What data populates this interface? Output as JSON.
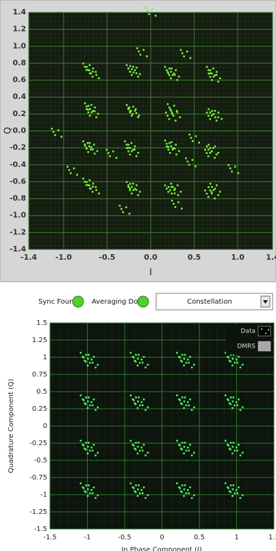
{
  "indicators": [
    {
      "label": "Sync Found"
    },
    {
      "label": "Averaging Done"
    }
  ],
  "dropdown": {
    "value": "Constellation"
  },
  "chart_data": [
    {
      "type": "scatter",
      "xlabel": "I",
      "ylabel": "Q",
      "color": "#7cf53a",
      "grid": true,
      "xlim": [
        -1.4,
        1.4
      ],
      "ylim": [
        -1.4,
        1.4
      ],
      "xticks": [
        -1.4,
        {
          "value": -1,
          "label": "-1.0"
        },
        -0.5,
        {
          "value": 0,
          "label": "0.0"
        },
        0.5,
        {
          "value": 1,
          "label": "1.0"
        },
        1.4
      ],
      "yticks": [
        1.4,
        1.2,
        {
          "value": 1,
          "label": "1.0"
        },
        0.8,
        0.6,
        0.4,
        0.2,
        {
          "value": 0,
          "label": "0.0"
        },
        -0.2,
        -0.4,
        -0.6,
        -0.8,
        {
          "value": -1,
          "label": "-1.0"
        },
        -1.2,
        -1.4
      ],
      "x": [
        -0.72,
        -0.68,
        -0.65,
        -0.22,
        -0.18,
        -0.2,
        0.22,
        0.27,
        0.25,
        0.7,
        0.74,
        0.72,
        -0.7,
        -0.66,
        -0.68,
        -0.22,
        -0.19,
        -0.2,
        0.25,
        0.28,
        0.23,
        0.72,
        0.76,
        0.7,
        -0.72,
        -0.67,
        -0.7,
        -0.24,
        -0.2,
        -0.22,
        0.22,
        0.27,
        0.24,
        0.7,
        0.68,
        0.72,
        -0.72,
        -0.68,
        -0.65,
        -0.22,
        -0.18,
        -0.2,
        0.22,
        0.26,
        0.29,
        0.68,
        0.72,
        0.74,
        -1.08,
        0.0,
        -0.1,
        0.4,
        -0.9,
        0.46,
        0.5,
        -0.3,
        0.3,
        -0.45,
        0.95
      ],
      "y": [
        0.74,
        0.7,
        0.66,
        0.72,
        0.71,
        0.68,
        0.7,
        0.68,
        0.64,
        0.7,
        0.66,
        0.62,
        0.27,
        0.24,
        0.2,
        0.25,
        0.22,
        0.2,
        0.26,
        0.2,
        0.16,
        0.2,
        0.18,
        0.16,
        -0.18,
        -0.2,
        -0.23,
        -0.18,
        -0.22,
        -0.26,
        -0.17,
        -0.2,
        -0.24,
        -0.24,
        -0.28,
        -0.22,
        -0.62,
        -0.66,
        -0.7,
        -0.66,
        -0.68,
        -0.72,
        -0.7,
        -0.72,
        -0.68,
        -0.76,
        -0.72,
        -0.68,
        -0.03,
        1.4,
        0.92,
        0.9,
        -0.48,
        -0.38,
        -0.1,
        -0.94,
        -0.88,
        -0.28,
        -0.46
      ]
    },
    {
      "type": "scatter",
      "xlabel": "In Phase Component (I)",
      "ylabel": "Quadrature Component (Q)",
      "grid": true,
      "legend": "top-right",
      "xlim": [
        -1.5,
        1.5
      ],
      "ylim": [
        -1.5,
        1.5
      ],
      "xticks": [
        -1.5,
        -1,
        -0.5,
        0,
        0.5,
        1,
        1.5
      ],
      "yticks": [
        1.5,
        1.25,
        1,
        0.75,
        0.5,
        0.25,
        0,
        -0.25,
        -0.5,
        -0.75,
        -1,
        -1.25,
        -1.5
      ],
      "series": [
        {
          "name": "Data",
          "color": "#4cf55a",
          "x": [
            -1.01,
            -0.94,
            -0.97,
            -0.34,
            -0.27,
            -0.3,
            0.28,
            0.35,
            0.32,
            0.93,
            1.0,
            0.97,
            -1.01,
            -0.94,
            -0.97,
            -0.34,
            -0.27,
            -0.3,
            0.28,
            0.35,
            0.32,
            0.93,
            1.0,
            0.97,
            -1.01,
            -0.94,
            -0.97,
            -0.34,
            -0.27,
            -0.3,
            0.28,
            0.35,
            0.32,
            0.93,
            1.0,
            0.97,
            -1.01,
            -0.94,
            -0.97,
            -0.34,
            -0.27,
            -0.3,
            0.28,
            0.35,
            0.32,
            0.93,
            1.0,
            0.97
          ],
          "y": [
            0.98,
            0.95,
            0.91,
            0.98,
            0.95,
            0.91,
            0.98,
            0.95,
            0.91,
            0.98,
            0.95,
            0.91,
            0.36,
            0.33,
            0.29,
            0.36,
            0.33,
            0.29,
            0.36,
            0.33,
            0.29,
            0.36,
            0.33,
            0.29,
            -0.3,
            -0.33,
            -0.37,
            -0.3,
            -0.33,
            -0.37,
            -0.3,
            -0.33,
            -0.37,
            -0.3,
            -0.33,
            -0.37,
            -0.92,
            -0.95,
            -0.99,
            -0.92,
            -0.95,
            -0.99,
            -0.92,
            -0.95,
            -0.99,
            -0.92,
            -0.95,
            -0.99
          ]
        },
        {
          "name": "DMRS",
          "color": "#a8a8a8",
          "x": [],
          "y": []
        }
      ]
    }
  ]
}
